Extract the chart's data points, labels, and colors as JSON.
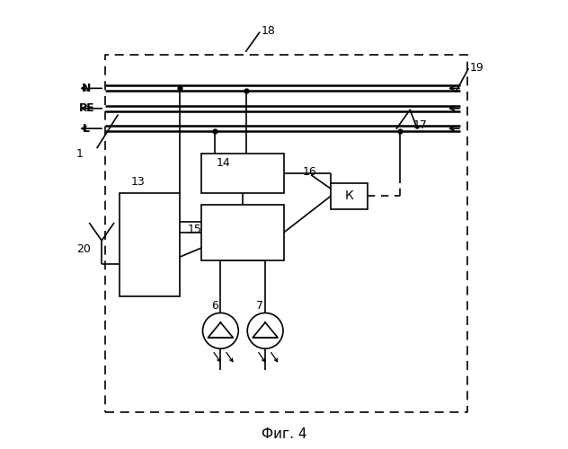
{
  "title": "Фиг. 4",
  "bg_color": "#ffffff",
  "line_color": "#000000",
  "figsize": [
    6.32,
    5.0
  ],
  "dpi": 100,
  "bus_labels": [
    "N",
    "PE",
    "L"
  ]
}
